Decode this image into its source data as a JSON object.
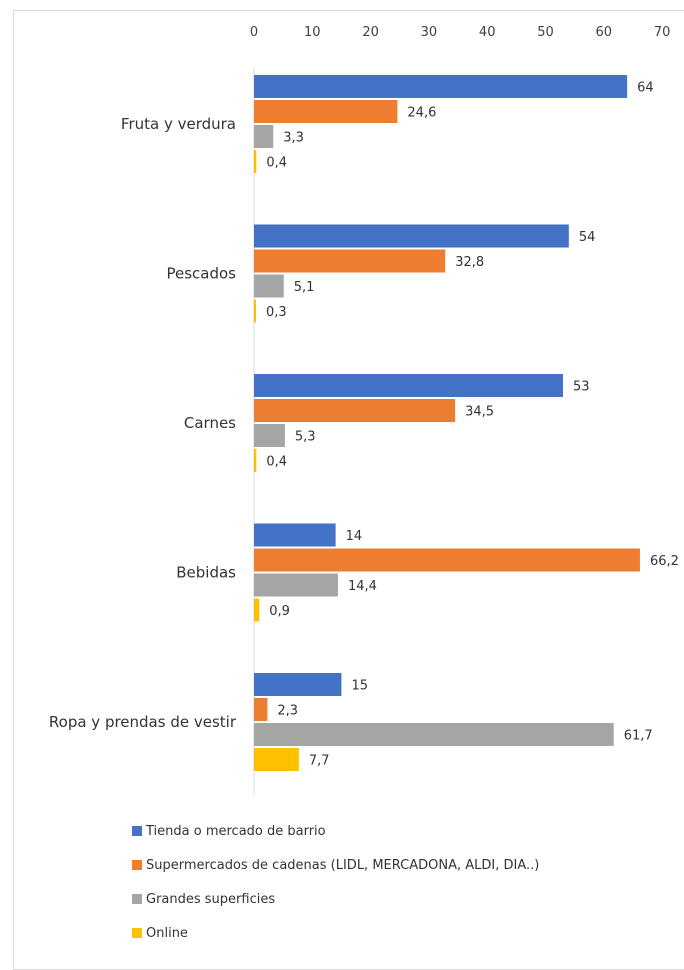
{
  "chart_data": {
    "type": "bar",
    "orientation": "horizontal",
    "categories": [
      "Fruta y verdura",
      "Pescados",
      "Carnes",
      "Bebidas",
      "Ropa y prendas de vestir"
    ],
    "series": [
      {
        "name": "Tienda o mercado de barrio",
        "color": "#4472C4",
        "values": [
          64,
          54,
          53,
          14,
          15
        ],
        "labels": [
          "64",
          "54",
          "53",
          "14",
          "15"
        ]
      },
      {
        "name": "Supermercados de cadenas (LIDL, MERCADONA, ALDI, DIA..)",
        "color": "#ED7D31",
        "values": [
          24.6,
          32.8,
          34.5,
          66.2,
          2.3
        ],
        "labels": [
          "24,6",
          "32,8",
          "34,5",
          "66,2",
          "2,3"
        ]
      },
      {
        "name": "Grandes superficies",
        "color": "#A5A5A5",
        "values": [
          3.3,
          5.1,
          5.3,
          14.4,
          61.7
        ],
        "labels": [
          "3,3",
          "5,1",
          "5,3",
          "14,4",
          "61,7"
        ]
      },
      {
        "name": "Online",
        "color": "#FFC000",
        "values": [
          0.4,
          0.3,
          0.4,
          0.9,
          7.7
        ],
        "labels": [
          "0,4",
          "0,3",
          "0,4",
          "0,9",
          "7,7"
        ]
      }
    ],
    "xlim": [
      0,
      70
    ],
    "xticks": [
      "0",
      "10",
      "20",
      "30",
      "40",
      "50",
      "60",
      "70"
    ],
    "axis_position": "top",
    "grid": false,
    "legend_position": "bottom"
  }
}
